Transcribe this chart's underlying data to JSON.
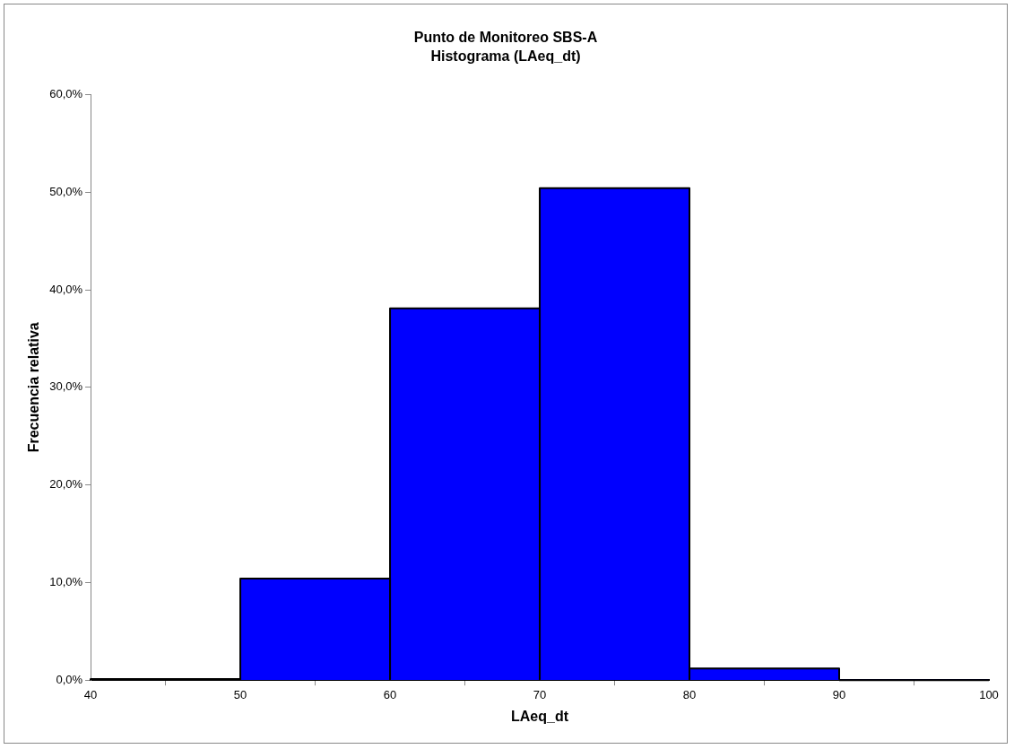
{
  "chart_data": {
    "type": "histogram",
    "title": "Punto de Monitoreo SBS-A",
    "subtitle": "Histograma (LAeq_dt)",
    "xlabel": "LAeq_dt",
    "ylabel": "Frecuencia relativa",
    "bins": [
      40,
      50,
      60,
      70,
      80,
      90,
      100
    ],
    "values": [
      0.1,
      10.4,
      38.1,
      50.4,
      1.2,
      0
    ],
    "color": "#0000ff",
    "xlim": [
      40,
      100
    ],
    "xticks": [
      40,
      50,
      60,
      70,
      80,
      90,
      100
    ],
    "ylim": [
      0,
      60
    ],
    "yticks": [
      {
        "value": 0,
        "label": "0,0%"
      },
      {
        "value": 10,
        "label": "10,0%"
      },
      {
        "value": 20,
        "label": "20,0%"
      },
      {
        "value": 30,
        "label": "30,0%"
      },
      {
        "value": 40,
        "label": "40,0%"
      },
      {
        "value": 50,
        "label": "50,0%"
      },
      {
        "value": 60,
        "label": "60,0%"
      }
    ],
    "grid": false,
    "legend": false
  }
}
